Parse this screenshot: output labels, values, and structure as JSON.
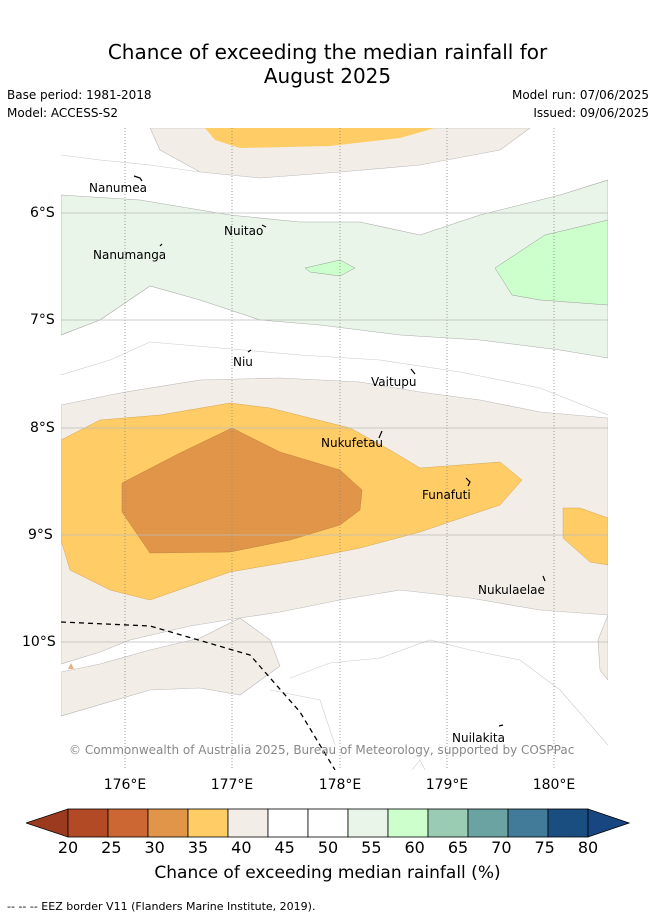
{
  "title_line1": "Chance of exceeding the median rainfall for",
  "title_line2": "August 2025",
  "base_period": "Base period: 1981-2018",
  "model": "Model: ACCESS-S2",
  "model_run": "Model run: 07/06/2025",
  "issued": "Issued: 09/06/2025",
  "copyright": "© Commonwealth of Australia 2025, Bureau of Meteorology, supported by COSPPac",
  "lon_labels": [
    "176°E",
    "177°E",
    "178°E",
    "179°E",
    "180°E"
  ],
  "lat_labels": [
    "6°S",
    "7°S",
    "8°S",
    "9°S",
    "10°S"
  ],
  "islands": {
    "nanumea": "Nanumea",
    "nuitao": "Nuitao",
    "nanumanga": "Nanumanga",
    "niu": "Niu",
    "vaitupu": "Vaitupu",
    "nukufetau": "Nukufetau",
    "funafuti": "Funafuti",
    "nukulaelae": "Nukulaelae",
    "nuilakita": "Nuilakita"
  },
  "colorbar": {
    "ticks": [
      "20",
      "25",
      "30",
      "35",
      "40",
      "45",
      "50",
      "55",
      "60",
      "65",
      "70",
      "75",
      "80"
    ],
    "colors": [
      "#b34a26",
      "#cc6633",
      "#e09548",
      "#ffcc66",
      "#f2ede6",
      "#ffffff",
      "#ffffff",
      "#e8f5e8",
      "#ccffcc",
      "#99ccb3",
      "#6ba3a3",
      "#427a99",
      "#1a4d80"
    ],
    "low_extend_color": "#9c3a1f",
    "high_extend_color": "#174680",
    "label": "Chance of exceeding median rainfall (%)"
  },
  "footnote": "--  --  -- EEZ border V11 (Flanders Marine Institute, 2019)."
}
